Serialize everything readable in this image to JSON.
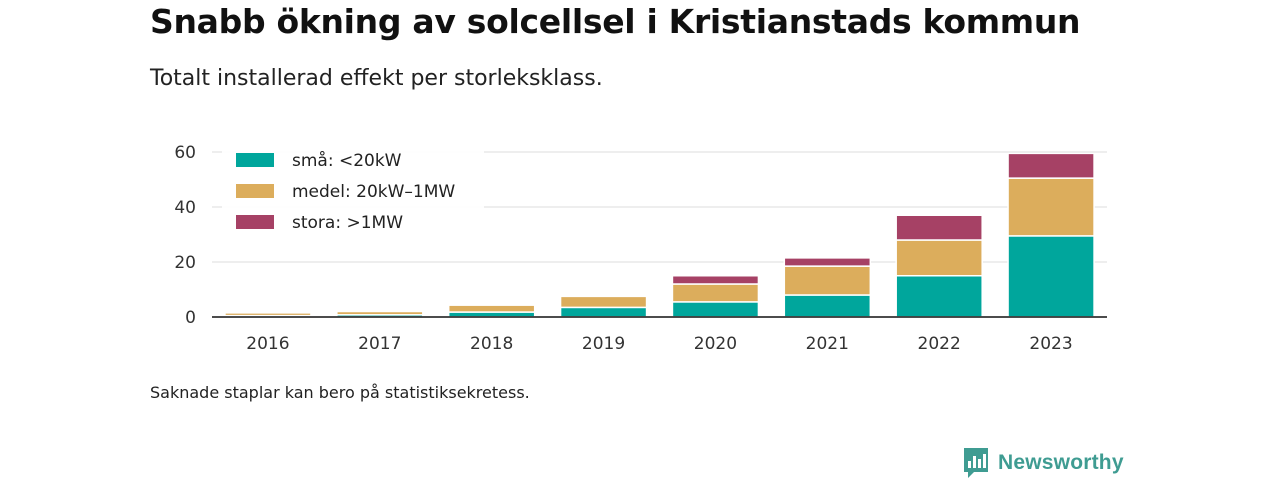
{
  "title": "Snabb ökning av solcellsel i Kristianstads kommun",
  "subtitle": "Totalt installerad effekt per storleksklass.",
  "note": "Saknade staplar kan bero på statistiksekretess.",
  "brand": {
    "name": "Newsworthy",
    "icon": "newsworthy-logo-icon",
    "color": "#3f9c92"
  },
  "chart_data": {
    "type": "bar",
    "stacked": true,
    "categories": [
      "2016",
      "2017",
      "2018",
      "2019",
      "2020",
      "2021",
      "2022",
      "2023"
    ],
    "series": [
      {
        "name": "små: <20kW",
        "color": "#00a69c",
        "values": [
          0.5,
          0.8,
          1.8,
          3.5,
          5.5,
          8.0,
          15.0,
          29.5
        ]
      },
      {
        "name": "medel: 20kW–1MW",
        "color": "#dcad5c",
        "values": [
          1.0,
          1.2,
          2.5,
          4.0,
          6.5,
          10.5,
          13.0,
          21.0
        ]
      },
      {
        "name": "stora: >1MW",
        "color": "#a64165",
        "values": [
          0,
          0,
          0,
          0,
          3.0,
          3.0,
          9.0,
          9.0
        ]
      }
    ],
    "yticks": [
      0,
      20,
      40,
      60
    ],
    "ylim": [
      0,
      62
    ],
    "grid": true,
    "legend": "top-left"
  }
}
